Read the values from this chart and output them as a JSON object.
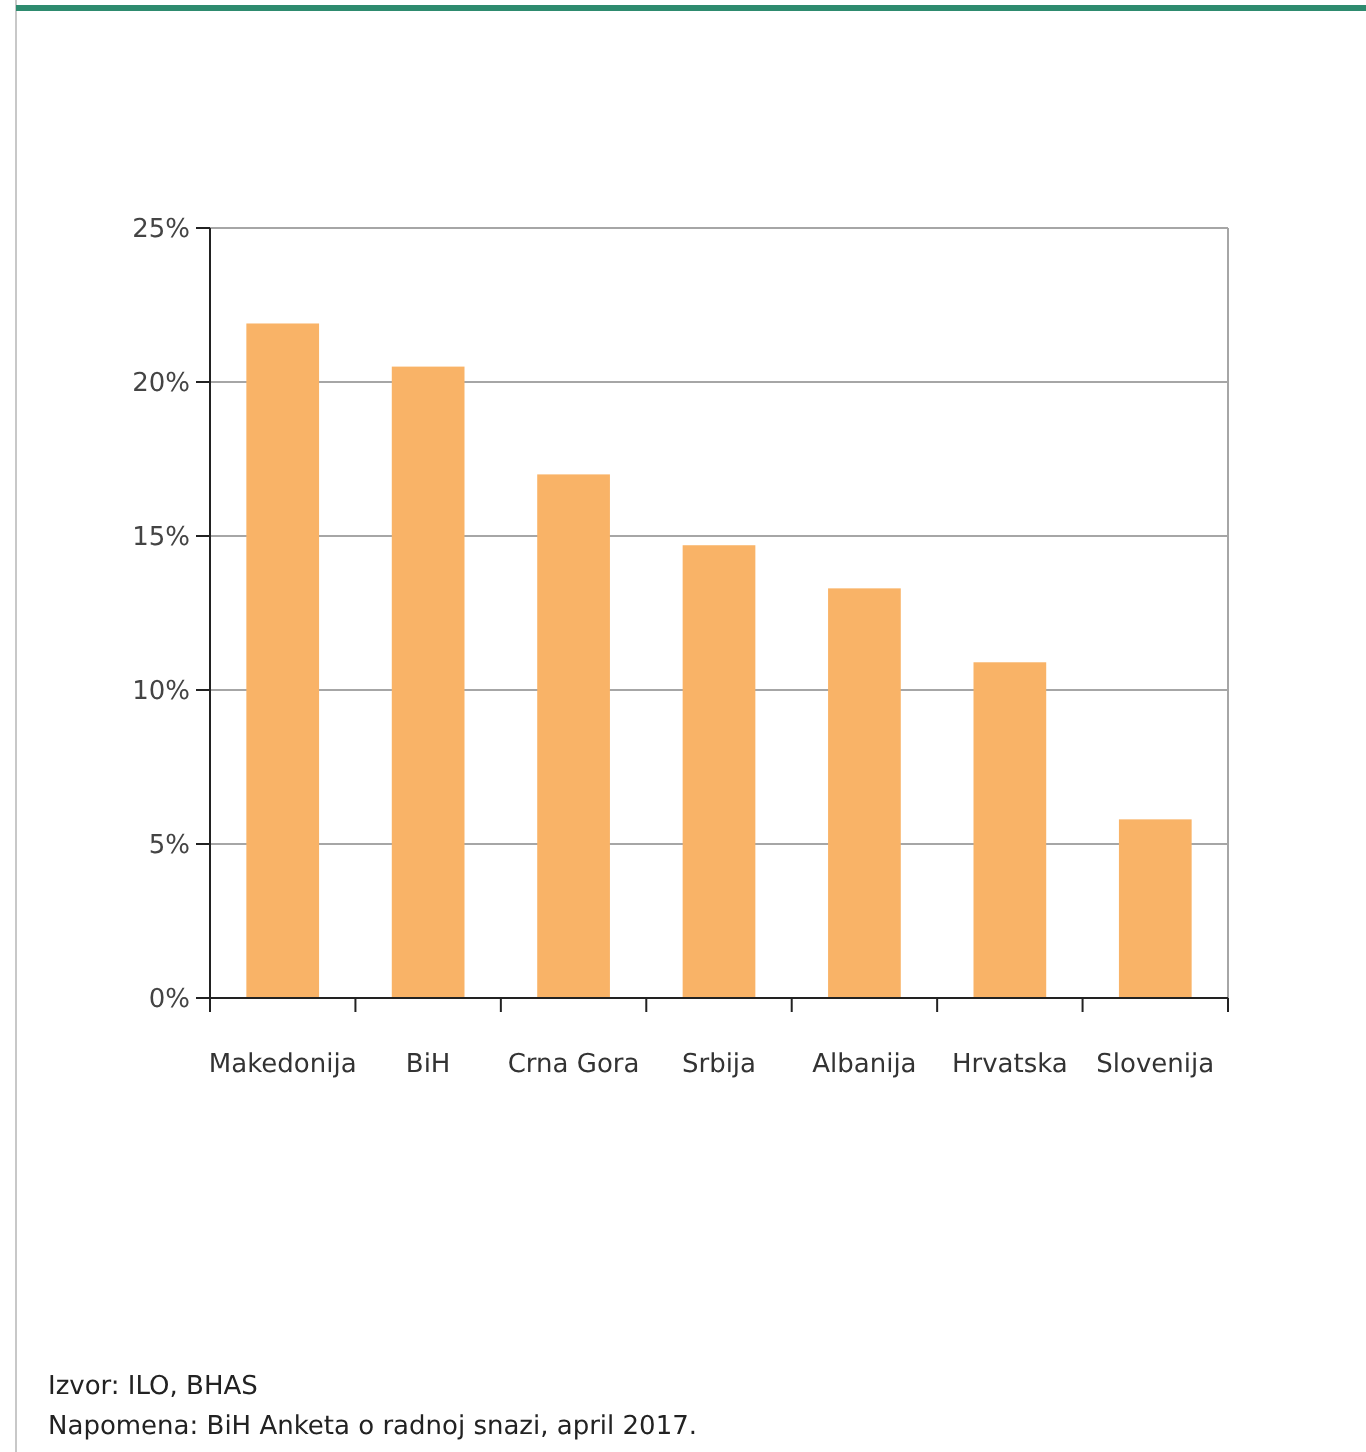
{
  "chart_data": {
    "type": "bar",
    "categories": [
      "Makedonija",
      "BiH",
      "Crna Gora",
      "Srbija",
      "Albanija",
      "Hrvatska",
      "Slovenija"
    ],
    "values": [
      21.9,
      20.5,
      17.0,
      14.7,
      13.3,
      10.9,
      5.8
    ],
    "color": "#f9b367",
    "ylim": [
      0,
      25
    ],
    "yticks": [
      {
        "value": 0,
        "label": "0%"
      },
      {
        "value": 5,
        "label": "5%"
      },
      {
        "value": 10,
        "label": "10%"
      },
      {
        "value": 15,
        "label": "15%"
      },
      {
        "value": 20,
        "label": "20%"
      },
      {
        "value": 25,
        "label": "25%"
      }
    ],
    "grid": "y",
    "annotations": [
      "Izvor: ILO, BHAS",
      "Napomena: BiH Anketa o radnoj snazi, april 2017."
    ]
  }
}
